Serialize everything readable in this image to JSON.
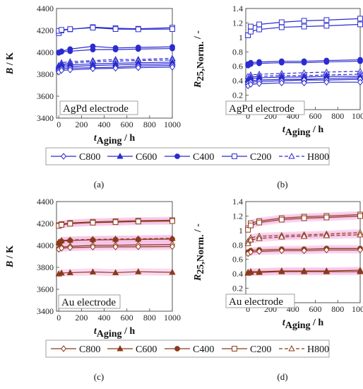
{
  "chart_data": [
    {
      "id": "a",
      "type": "line",
      "panel_label": "(a)",
      "annotation": "AgPd electrode",
      "xlabel_sym": "t",
      "xlabel_sub": "Aging",
      "xlabel_unit": " / h",
      "ylabel": "B / K",
      "xlim": [
        -20,
        1000
      ],
      "ylim": [
        3400,
        4400
      ],
      "xticks": [
        0,
        200,
        400,
        600,
        800,
        1000
      ],
      "yticks": [
        3400,
        3600,
        3800,
        4000,
        4200,
        4400
      ],
      "x": [
        0,
        24,
        100,
        300,
        500,
        700,
        1000
      ],
      "color": "#2b2bd0",
      "series": [
        {
          "name": "C200",
          "marker": "square-open",
          "dash": false,
          "values": [
            4175,
            4200,
            4210,
            4230,
            4220,
            4215,
            4225
          ]
        },
        {
          "name": "C200",
          "marker": "square-open",
          "dash": false,
          "values": [
            4195,
            4205,
            4212,
            4225,
            4212,
            4210,
            4212
          ]
        },
        {
          "name": "C400",
          "marker": "circle-filled",
          "dash": false,
          "values": [
            4000,
            4010,
            4030,
            4055,
            4040,
            4045,
            4050
          ]
        },
        {
          "name": "C400",
          "marker": "circle-filled",
          "dash": false,
          "values": [
            3995,
            4005,
            4010,
            4025,
            4025,
            4030,
            4035
          ]
        },
        {
          "name": "H800",
          "marker": "triangle-open",
          "dash": true,
          "values": [
            3880,
            3905,
            3915,
            3925,
            3935,
            3935,
            3945
          ]
        },
        {
          "name": "H800",
          "marker": "triangle-open",
          "dash": true,
          "values": [
            3870,
            3890,
            3900,
            3915,
            3920,
            3925,
            3930
          ]
        },
        {
          "name": "C600",
          "marker": "triangle-filled",
          "dash": false,
          "values": [
            3860,
            3880,
            3885,
            3895,
            3900,
            3905,
            3910
          ]
        },
        {
          "name": "C600",
          "marker": "triangle-filled",
          "dash": false,
          "values": [
            3850,
            3865,
            3870,
            3880,
            3885,
            3890,
            3895
          ]
        },
        {
          "name": "C800",
          "marker": "diamond-open",
          "dash": false,
          "values": [
            3835,
            3850,
            3855,
            3860,
            3865,
            3875,
            3880
          ]
        },
        {
          "name": "C800",
          "marker": "diamond-open",
          "dash": false,
          "values": [
            3820,
            3835,
            3840,
            3850,
            3855,
            3860,
            3865
          ]
        }
      ]
    },
    {
      "id": "b",
      "type": "line",
      "panel_label": "(b)",
      "annotation": "AgPd electrode",
      "xlabel_sym": "t",
      "xlabel_sub": "Aging",
      "xlabel_unit": " / h",
      "ylabel_sym": "R",
      "ylabel_sub": "25,Norm.",
      "ylabel_unit": " / -",
      "xlim": [
        -20,
        1000
      ],
      "ylim": [
        0,
        1.4
      ],
      "xticks": [
        0,
        200,
        400,
        600,
        800,
        1000
      ],
      "yticks": [
        0,
        0.2,
        0.4,
        0.6,
        0.8,
        1.0,
        1.2,
        1.4
      ],
      "ytick_labels": [
        "0",
        "0.2",
        "0.4",
        "0.6",
        "0.8",
        "1",
        "1.2",
        "1.4"
      ],
      "x": [
        0,
        24,
        100,
        300,
        500,
        700,
        1000
      ],
      "color": "#2b2bd0",
      "series": [
        {
          "name": "C200",
          "marker": "square-open",
          "dash": false,
          "values": [
            1.03,
            1.15,
            1.18,
            1.21,
            1.23,
            1.24,
            1.26
          ]
        },
        {
          "name": "C200",
          "marker": "square-open",
          "dash": false,
          "values": [
            1.03,
            1.08,
            1.11,
            1.14,
            1.15,
            1.16,
            1.18
          ]
        },
        {
          "name": "C400",
          "marker": "circle-filled",
          "dash": false,
          "values": [
            0.63,
            0.65,
            0.66,
            0.67,
            0.67,
            0.68,
            0.69
          ]
        },
        {
          "name": "C400",
          "marker": "circle-filled",
          "dash": false,
          "values": [
            0.61,
            0.63,
            0.64,
            0.65,
            0.65,
            0.66,
            0.67
          ]
        },
        {
          "name": "H800",
          "marker": "triangle-open",
          "dash": true,
          "values": [
            0.46,
            0.48,
            0.49,
            0.5,
            0.51,
            0.52,
            0.53
          ]
        },
        {
          "name": "H800",
          "marker": "triangle-open",
          "dash": true,
          "values": [
            0.42,
            0.45,
            0.46,
            0.47,
            0.47,
            0.48,
            0.49
          ]
        },
        {
          "name": "C600",
          "marker": "triangle-filled",
          "dash": false,
          "values": [
            0.41,
            0.43,
            0.44,
            0.45,
            0.45,
            0.46,
            0.46
          ]
        },
        {
          "name": "C600",
          "marker": "triangle-filled",
          "dash": false,
          "values": [
            0.38,
            0.4,
            0.41,
            0.42,
            0.42,
            0.43,
            0.44
          ]
        },
        {
          "name": "C800",
          "marker": "diamond-open",
          "dash": false,
          "values": [
            0.36,
            0.38,
            0.39,
            0.4,
            0.41,
            0.41,
            0.42
          ]
        },
        {
          "name": "C800",
          "marker": "diamond-open",
          "dash": false,
          "values": [
            0.33,
            0.35,
            0.36,
            0.37,
            0.37,
            0.38,
            0.38
          ]
        }
      ]
    },
    {
      "id": "c",
      "type": "line",
      "panel_label": "(c)",
      "annotation": "Au electrode",
      "xlabel_sym": "t",
      "xlabel_sub": "Aging",
      "xlabel_unit": " / h",
      "ylabel": "B / K",
      "xlim": [
        -20,
        1000
      ],
      "ylim": [
        3400,
        4400
      ],
      "xticks": [
        0,
        200,
        400,
        600,
        800,
        1000
      ],
      "yticks": [
        3400,
        3600,
        3800,
        4000,
        4200,
        4400
      ],
      "x": [
        0,
        24,
        100,
        300,
        500,
        700,
        1000
      ],
      "color": "#8b3a1a",
      "band_color": "#f4b8e4",
      "series": [
        {
          "name": "C200",
          "marker": "square-open",
          "dash": false,
          "values": [
            4185,
            4195,
            4205,
            4215,
            4220,
            4225,
            4230
          ]
        },
        {
          "name": "C200",
          "marker": "square-open",
          "dash": false,
          "values": [
            4178,
            4188,
            4198,
            4208,
            4212,
            4218,
            4222
          ]
        },
        {
          "name": "H800",
          "marker": "triangle-open",
          "dash": true,
          "values": [
            4030,
            4045,
            4050,
            4055,
            4058,
            4060,
            4065
          ]
        },
        {
          "name": "C400",
          "marker": "circle-filled",
          "dash": false,
          "values": [
            4020,
            4038,
            4045,
            4050,
            4052,
            4055,
            4058
          ]
        },
        {
          "name": "C800",
          "marker": "diamond-open",
          "dash": false,
          "values": [
            3975,
            3985,
            3992,
            4000,
            4002,
            4005,
            4008
          ]
        },
        {
          "name": "C800",
          "marker": "diamond-open",
          "dash": false,
          "values": [
            3965,
            3975,
            3980,
            3985,
            3987,
            3988,
            3990
          ]
        },
        {
          "name": "C600",
          "marker": "triangle-filled",
          "dash": false,
          "values": [
            3740,
            3748,
            3752,
            3758,
            3752,
            3760,
            3755
          ]
        }
      ]
    },
    {
      "id": "d",
      "type": "line",
      "panel_label": "(d)",
      "annotation": "Au electrode",
      "xlabel_sym": "t",
      "xlabel_sub": "Aging",
      "xlabel_unit": " / h",
      "ylabel_sym": "R",
      "ylabel_sub": "25,Norm.",
      "ylabel_unit": " / -",
      "xlim": [
        -20,
        1000
      ],
      "ylim": [
        0,
        1.4
      ],
      "xticks": [
        0,
        200,
        400,
        600,
        800,
        1000
      ],
      "yticks": [
        0,
        0.2,
        0.4,
        0.6,
        0.8,
        1.0,
        1.2,
        1.4
      ],
      "ytick_labels": [
        "0",
        "0.2",
        "0.4",
        "0.6",
        "0.8",
        "1",
        "1.2",
        "1.4"
      ],
      "x": [
        0,
        24,
        100,
        300,
        500,
        700,
        1000
      ],
      "color": "#8b3a1a",
      "band_color": "#f4b8e4",
      "series": [
        {
          "name": "C200",
          "marker": "square-open",
          "dash": false,
          "values": [
            1.03,
            1.1,
            1.13,
            1.17,
            1.19,
            1.2,
            1.22
          ]
        },
        {
          "name": "C200",
          "marker": "square-open",
          "dash": false,
          "values": [
            1.01,
            1.07,
            1.11,
            1.15,
            1.17,
            1.18,
            1.2
          ]
        },
        {
          "name": "H800",
          "marker": "triangle-open",
          "dash": true,
          "values": [
            0.85,
            0.9,
            0.92,
            0.93,
            0.94,
            0.95,
            0.97
          ]
        },
        {
          "name": "H800",
          "marker": "triangle-open",
          "dash": true,
          "values": [
            0.82,
            0.87,
            0.89,
            0.91,
            0.92,
            0.93,
            0.94
          ]
        },
        {
          "name": "C400",
          "marker": "circle-filled",
          "dash": false,
          "values": [
            0.7,
            0.72,
            0.73,
            0.74,
            0.74,
            0.75,
            0.75
          ]
        },
        {
          "name": "C800",
          "marker": "diamond-open",
          "dash": false,
          "values": [
            0.68,
            0.7,
            0.71,
            0.72,
            0.72,
            0.73,
            0.73
          ]
        },
        {
          "name": "C600",
          "marker": "triangle-filled",
          "dash": false,
          "values": [
            0.42,
            0.43,
            0.43,
            0.44,
            0.44,
            0.44,
            0.45
          ]
        },
        {
          "name": "C600",
          "marker": "triangle-filled",
          "dash": false,
          "values": [
            0.41,
            0.42,
            0.42,
            0.43,
            0.43,
            0.43,
            0.43
          ]
        }
      ]
    }
  ],
  "legends": [
    {
      "id": "legend-agpd",
      "color": "#2b2bd0",
      "entries": [
        {
          "label": "C800",
          "marker": "diamond-open",
          "dash": false
        },
        {
          "label": "C600",
          "marker": "triangle-filled",
          "dash": false
        },
        {
          "label": "C400",
          "marker": "circle-filled",
          "dash": false
        },
        {
          "label": "C200",
          "marker": "square-open",
          "dash": false
        },
        {
          "label": "H800",
          "marker": "triangle-open",
          "dash": true
        }
      ]
    },
    {
      "id": "legend-au",
      "color": "#8b3a1a",
      "entries": [
        {
          "label": "C800",
          "marker": "diamond-open",
          "dash": false
        },
        {
          "label": "C600",
          "marker": "triangle-filled",
          "dash": false
        },
        {
          "label": "C400",
          "marker": "circle-filled",
          "dash": false
        },
        {
          "label": "C200",
          "marker": "square-open",
          "dash": false
        },
        {
          "label": "H800",
          "marker": "triangle-open",
          "dash": true
        }
      ]
    }
  ]
}
